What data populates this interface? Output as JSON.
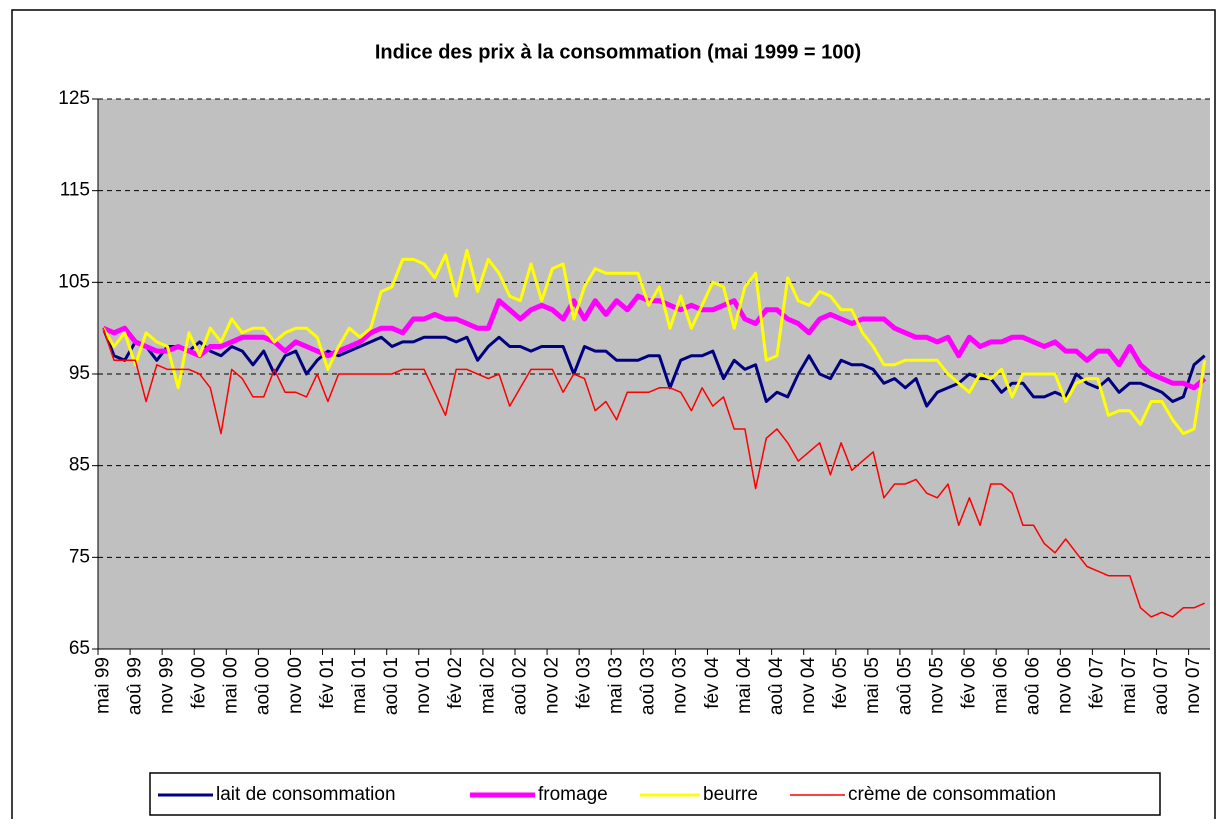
{
  "chart_data": {
    "type": "line",
    "title": "Indice des prix à la consommation (mai 1999 = 100)",
    "categories": [
      "mai 99",
      null,
      null,
      "aoû 99",
      null,
      null,
      "nov 99",
      null,
      null,
      "fév 00",
      null,
      null,
      "mai 00",
      null,
      null,
      "aoû 00",
      null,
      null,
      "nov 00",
      null,
      null,
      "fév 01",
      null,
      null,
      "mai 01",
      null,
      null,
      "aoû 01",
      null,
      null,
      "nov 01",
      null,
      null,
      "fév 02",
      null,
      null,
      "mai 02",
      null,
      null,
      "aoû 02",
      null,
      null,
      "nov 02",
      null,
      null,
      "fév 03",
      null,
      null,
      "mai 03",
      null,
      null,
      "aoû 03",
      null,
      null,
      "nov 03",
      null,
      null,
      "fév 04",
      null,
      null,
      "mai 04",
      null,
      null,
      "aoû 04",
      null,
      null,
      "nov 04",
      null,
      null,
      "fév 05",
      null,
      null,
      "mai 05",
      null,
      null,
      "aoû 05",
      null,
      null,
      "nov 05",
      null,
      null,
      "fév 06",
      null,
      null,
      "mai 06",
      null,
      null,
      "aoû 06",
      null,
      null,
      "nov 06",
      null,
      null,
      "fév 07",
      null,
      null,
      "mai 07",
      null,
      null,
      "aoû 07",
      null,
      null,
      "nov 07",
      null
    ],
    "series": [
      {
        "name": "lait de consommation",
        "color": "#000080",
        "values": [
          100,
          97,
          96.5,
          98.5,
          98,
          96.5,
          98,
          98,
          97.5,
          98.5,
          97.5,
          97,
          98,
          97.5,
          96,
          97.5,
          95,
          97,
          97.5,
          95,
          96.5,
          97.5,
          97,
          97.5,
          98,
          98.5,
          99,
          98,
          98.5,
          98.5,
          99,
          99,
          99,
          98.5,
          99,
          96.5,
          98,
          99,
          98,
          98,
          97.5,
          98,
          98,
          98,
          95,
          98,
          97.5,
          97.5,
          96.5,
          96.5,
          96.5,
          97,
          97,
          93.5,
          96.5,
          97,
          97,
          97.5,
          94.5,
          96.5,
          95.5,
          96,
          92,
          93,
          92.5,
          95,
          97,
          95,
          94.5,
          96.5,
          96,
          96,
          95.5,
          94,
          94.5,
          93.5,
          94.5,
          91.5,
          93,
          93.5,
          94,
          95,
          94.5,
          94.5,
          93,
          94,
          94,
          92.5,
          92.5,
          93,
          92.5,
          95,
          94,
          93.5,
          94.5,
          93,
          94,
          94,
          93.5,
          93,
          92,
          92.5,
          96,
          97
        ]
      },
      {
        "name": "fromage",
        "color": "#ff00ff",
        "values": [
          100,
          99.5,
          100,
          98.5,
          98,
          97.5,
          97.5,
          98,
          97.5,
          97,
          98,
          98,
          98.5,
          99,
          99,
          99,
          98.5,
          97.5,
          98.5,
          98,
          97.5,
          97,
          97.5,
          98,
          98.5,
          99.5,
          100,
          100,
          99.5,
          101,
          101,
          101.5,
          101,
          101,
          100.5,
          100,
          100,
          103,
          102,
          101,
          102,
          102.5,
          102,
          101,
          103,
          101,
          103,
          101.5,
          103,
          102,
          103.5,
          103,
          103,
          102.5,
          102,
          102.5,
          102,
          102,
          102.5,
          103,
          101,
          100.5,
          102,
          102,
          101,
          100.5,
          99.5,
          101,
          101.5,
          101,
          100.5,
          101,
          101,
          101,
          100,
          99.5,
          99,
          99,
          98.5,
          99,
          97,
          99,
          98,
          98.5,
          98.5,
          99,
          99,
          98.5,
          98,
          98.5,
          97.5,
          97.5,
          96.5,
          97.5,
          97.5,
          96,
          98,
          96,
          95,
          94.5,
          94,
          94,
          93.5,
          94.5
        ]
      },
      {
        "name": "beurre",
        "color": "#ffff00",
        "values": [
          100,
          98,
          99.5,
          96,
          99.5,
          98.5,
          98,
          93.5,
          99.5,
          97,
          100,
          98.5,
          101,
          99.5,
          100,
          100,
          98.5,
          99.5,
          100,
          100,
          99,
          95.5,
          98,
          100,
          99,
          100,
          104,
          104.5,
          107.5,
          107.5,
          107,
          105.5,
          108,
          103.5,
          108.5,
          104,
          107.5,
          106,
          103.5,
          103,
          107,
          103,
          106.5,
          107,
          101,
          104.5,
          106.5,
          106,
          106,
          106,
          106,
          102.5,
          104.5,
          100,
          103.5,
          100,
          102.5,
          105,
          104.5,
          100,
          104.5,
          106,
          96.5,
          97,
          105.5,
          103,
          102.5,
          104,
          103.5,
          102,
          102,
          99.5,
          98,
          96,
          96,
          96.5,
          96.5,
          96.5,
          96.5,
          95,
          94,
          93,
          95,
          94.5,
          95.5,
          92.5,
          95,
          95,
          95,
          95,
          92,
          94,
          94.5,
          94.5,
          90.5,
          91,
          91,
          89.5,
          92,
          92,
          90,
          88.5,
          89,
          96.5
        ]
      },
      {
        "name": "crème de consommation",
        "color": "#ff0000",
        "values": [
          100,
          96.5,
          96.5,
          96.5,
          92,
          96,
          95.5,
          95.5,
          95.5,
          95,
          93.5,
          88.5,
          95.5,
          94.5,
          92.5,
          92.5,
          95.5,
          93,
          93,
          92.5,
          95,
          92,
          95,
          95,
          95,
          95,
          95,
          95,
          95.5,
          95.5,
          95.5,
          93,
          90.5,
          95.5,
          95.5,
          95,
          94.5,
          95,
          91.5,
          93.5,
          95.5,
          95.5,
          95.5,
          93,
          95,
          94.5,
          91,
          92,
          90,
          93,
          93,
          93,
          93.5,
          93.5,
          93,
          91,
          93.5,
          91.5,
          92.5,
          89,
          89,
          82.5,
          88,
          89,
          87.5,
          85.5,
          86.5,
          87.5,
          84,
          87.5,
          84.5,
          85.5,
          86.5,
          81.5,
          83,
          83,
          83.5,
          82,
          81.5,
          83,
          78.5,
          81.5,
          78.5,
          83,
          83,
          82,
          78.5,
          78.5,
          76.5,
          75.5,
          77,
          75.5,
          74,
          73.5,
          73,
          73,
          73,
          69.5,
          68.5,
          69,
          68.5,
          69.5,
          69.5,
          70
        ]
      }
    ],
    "ylim": [
      65,
      125
    ],
    "yticks": [
      65,
      75,
      85,
      95,
      105,
      115,
      125
    ],
    "grid": true,
    "legend": "bottom"
  }
}
